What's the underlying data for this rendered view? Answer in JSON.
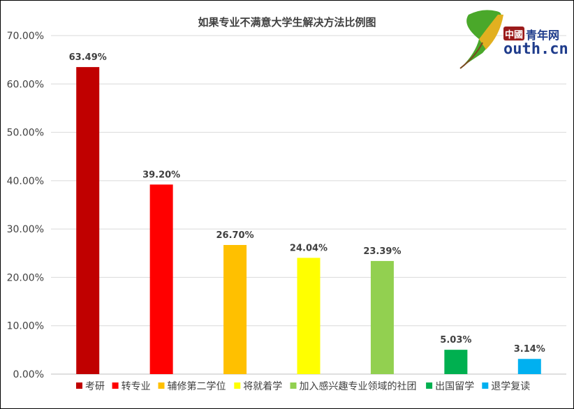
{
  "chart_data": {
    "type": "bar",
    "title": "如果专业不满意大学生解决方法比例图",
    "categories": [
      "考研",
      "转专业",
      "辅修第二学位",
      "将就着学",
      "加入感兴趣专业领域的社团",
      "出国留学",
      "退学复读"
    ],
    "values": [
      63.49,
      39.2,
      26.7,
      24.04,
      23.39,
      5.03,
      3.14
    ],
    "data_labels": [
      "63.49%",
      "39.20%",
      "26.70%",
      "24.04%",
      "23.39%",
      "5.03%",
      "3.14%"
    ],
    "colors": [
      "#C00000",
      "#FF0000",
      "#FFC000",
      "#FFFF00",
      "#92D050",
      "#00B050",
      "#00B0F0"
    ],
    "ylim": [
      0,
      70
    ],
    "yticks": [
      "0.00%",
      "10.00%",
      "20.00%",
      "30.00%",
      "40.00%",
      "50.00%",
      "60.00%",
      "70.00%"
    ],
    "grid": true,
    "legend": "bottom",
    "xlabel": "",
    "ylabel": ""
  },
  "logo": {
    "cn": "中國",
    "name": "青年网",
    "y": "y",
    "domain": "outh.cn"
  }
}
